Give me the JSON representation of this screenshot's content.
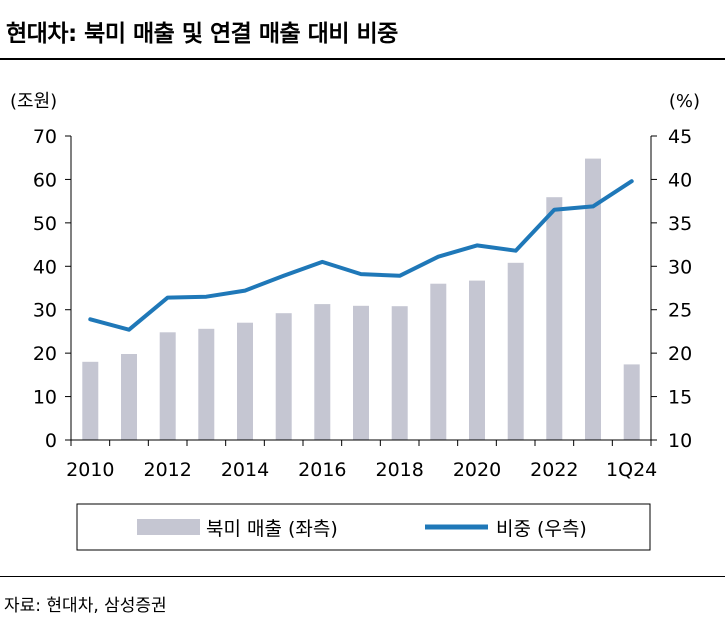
{
  "title": "현대차: 북미 매출 및 연결 매출 대비 비중",
  "source": "자료: 현대차, 삼성증권",
  "colors": {
    "bar": "#c5c6d2",
    "line": "#1f78b8",
    "axis": "#000000"
  },
  "chart_data": {
    "type": "bar",
    "categories": [
      "2010",
      "2011",
      "2012",
      "2013",
      "2014",
      "2015",
      "2016",
      "2017",
      "2018",
      "2019",
      "2020",
      "2021",
      "2022",
      "2023",
      "1Q24"
    ],
    "x_tick_labels": [
      "2010",
      "",
      "2012",
      "",
      "2014",
      "",
      "2016",
      "",
      "2018",
      "",
      "2020",
      "",
      "2022",
      "",
      "1Q24"
    ],
    "series": [
      {
        "name": "북미 매출 (좌측)",
        "type": "bar",
        "axis": "left",
        "values": [
          18.0,
          19.8,
          24.8,
          25.6,
          27.0,
          29.2,
          31.3,
          30.9,
          30.8,
          36.0,
          36.7,
          40.8,
          55.9,
          64.8,
          17.4
        ]
      },
      {
        "name": "비중 (우측)",
        "type": "line",
        "axis": "right",
        "values": [
          23.9,
          22.7,
          26.4,
          26.5,
          27.2,
          28.9,
          30.5,
          29.1,
          28.9,
          31.1,
          32.4,
          31.8,
          36.5,
          36.9,
          39.8
        ]
      }
    ],
    "left_axis": {
      "label": "(조원)",
      "min": 0,
      "max": 70,
      "step": 10,
      "ticks": [
        "0",
        "10",
        "20",
        "30",
        "40",
        "50",
        "60",
        "70"
      ]
    },
    "right_axis": {
      "label": "(%)",
      "min": 10,
      "max": 45,
      "step": 5,
      "ticks": [
        "10",
        "15",
        "20",
        "25",
        "30",
        "35",
        "40",
        "45"
      ]
    },
    "legend": {
      "position": "bottom",
      "items": [
        "북미 매출 (좌측)",
        "비중 (우측)"
      ]
    }
  }
}
